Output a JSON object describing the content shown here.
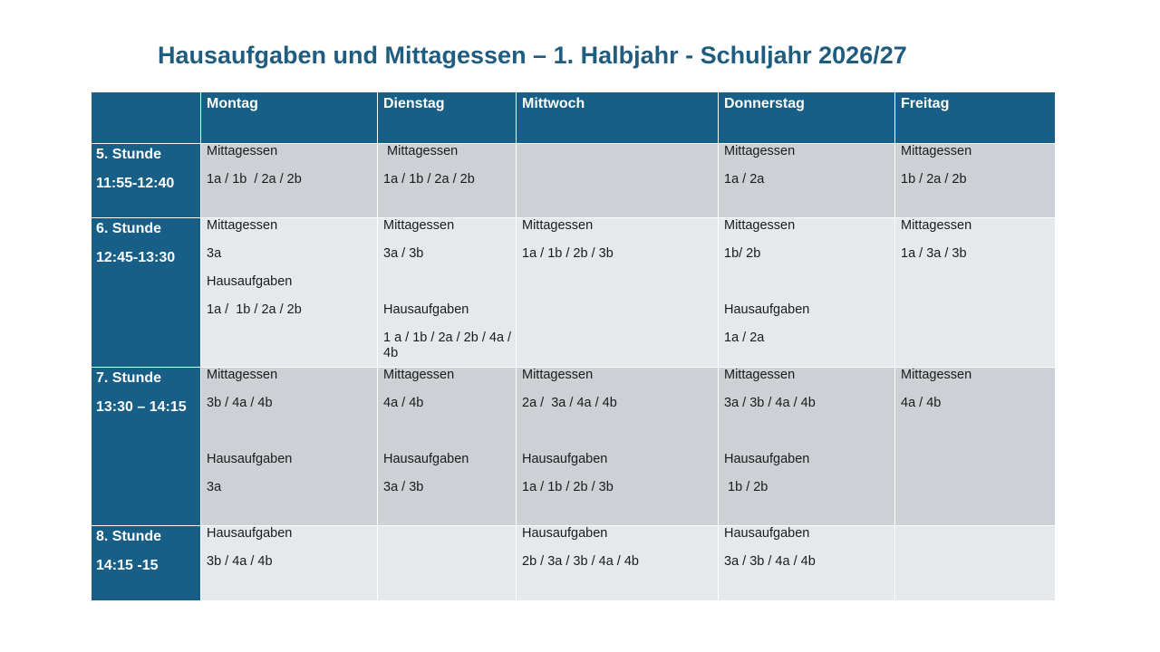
{
  "title": "Hausaufgaben und Mittagessen – 1. Halbjahr - Schuljahr 2026/27",
  "days": [
    "Montag",
    "Dienstag",
    "Mittwoch",
    "Donnerstag",
    "Freitag"
  ],
  "rows": [
    {
      "period": "5. Stunde",
      "time": "11:55-12:40",
      "cells": [
        [
          "Mittagessen",
          "1a / 1b  / 2a / 2b"
        ],
        [
          " Mittagessen",
          "1a / 1b / 2a / 2b"
        ],
        [],
        [
          "Mittagessen",
          "1a / 2a"
        ],
        [
          "Mittagessen",
          "1b / 2a / 2b"
        ]
      ]
    },
    {
      "period": "6. Stunde",
      "time": "12:45-13:30",
      "cells": [
        [
          "Mittagessen",
          "3a",
          "Hausaufgaben",
          "1a /  1b / 2a / 2b"
        ],
        [
          "Mittagessen",
          "3a / 3b",
          "",
          "Hausaufgaben",
          "1 a / 1b / 2a / 2b / 4a / 4b"
        ],
        [
          "Mittagessen",
          "1a / 1b / 2b / 3b"
        ],
        [
          "Mittagessen",
          "1b/ 2b",
          "",
          "Hausaufgaben",
          "1a / 2a"
        ],
        [
          "Mittagessen",
          "1a / 3a / 3b"
        ]
      ]
    },
    {
      "period": "7. Stunde",
      "time": "13:30 – 14:15",
      "cells": [
        [
          "Mittagessen",
          "3b / 4a / 4b",
          "",
          "Hausaufgaben",
          "3a"
        ],
        [
          "Mittagessen",
          "4a / 4b",
          "",
          "Hausaufgaben",
          "3a / 3b"
        ],
        [
          "Mittagessen",
          "2a /  3a / 4a / 4b",
          "",
          "Hausaufgaben",
          "1a / 1b / 2b / 3b"
        ],
        [
          "Mittagessen",
          "3a / 3b / 4a / 4b",
          "",
          "Hausaufgaben",
          " 1b / 2b"
        ],
        [
          "Mittagessen",
          "4a / 4b"
        ]
      ]
    },
    {
      "period": "8. Stunde",
      "time": "14:15 -15",
      "cells": [
        [
          "Hausaufgaben",
          "3b / 4a / 4b"
        ],
        [],
        [
          "Hausaufgaben",
          "2b / 3a / 3b / 4a / 4b"
        ],
        [
          "Hausaufgaben",
          "3a / 3b / 4a / 4b"
        ],
        []
      ]
    }
  ],
  "colors": {
    "header": "#175f87",
    "title": "#1f5c80",
    "row_dark": "#cdd1d6",
    "row_light": "#e6e9ec"
  }
}
